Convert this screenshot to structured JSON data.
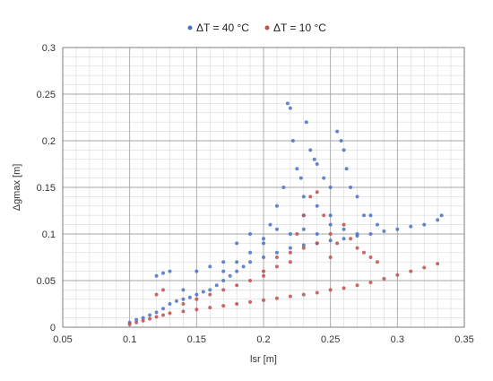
{
  "chart_data": {
    "type": "scatter",
    "xlabel": "lsr [m]",
    "ylabel": "Δgmax [m]",
    "xlim": [
      0.05,
      0.35
    ],
    "ylim": [
      0,
      0.3
    ],
    "x_ticks": [
      "0.05",
      "0.1",
      "0.15",
      "0.2",
      "0.25",
      "0.3",
      "0.35"
    ],
    "y_ticks": [
      "0",
      "0.05",
      "0.1",
      "0.15",
      "0.2",
      "0.25",
      "0.3"
    ],
    "grid": true,
    "minor_grid": true,
    "legend_position": "top",
    "series": [
      {
        "name": "ΔT = 40 °C",
        "color": "#4a72c4",
        "points": [
          [
            0.1,
            0.005
          ],
          [
            0.105,
            0.008
          ],
          [
            0.11,
            0.01
          ],
          [
            0.115,
            0.013
          ],
          [
            0.12,
            0.016
          ],
          [
            0.125,
            0.02
          ],
          [
            0.13,
            0.025
          ],
          [
            0.135,
            0.028
          ],
          [
            0.14,
            0.03
          ],
          [
            0.145,
            0.032
          ],
          [
            0.15,
            0.035
          ],
          [
            0.155,
            0.038
          ],
          [
            0.16,
            0.04
          ],
          [
            0.165,
            0.045
          ],
          [
            0.17,
            0.05
          ],
          [
            0.175,
            0.055
          ],
          [
            0.18,
            0.06
          ],
          [
            0.185,
            0.065
          ],
          [
            0.19,
            0.07
          ],
          [
            0.2,
            0.075
          ],
          [
            0.21,
            0.08
          ],
          [
            0.22,
            0.085
          ],
          [
            0.23,
            0.088
          ],
          [
            0.24,
            0.09
          ],
          [
            0.25,
            0.093
          ],
          [
            0.26,
            0.095
          ],
          [
            0.27,
            0.098
          ],
          [
            0.28,
            0.1
          ],
          [
            0.29,
            0.103
          ],
          [
            0.3,
            0.105
          ],
          [
            0.31,
            0.108
          ],
          [
            0.32,
            0.11
          ],
          [
            0.33,
            0.115
          ],
          [
            0.333,
            0.12
          ],
          [
            0.12,
            0.055
          ],
          [
            0.125,
            0.058
          ],
          [
            0.13,
            0.06
          ],
          [
            0.14,
            0.04
          ],
          [
            0.15,
            0.06
          ],
          [
            0.16,
            0.065
          ],
          [
            0.17,
            0.07
          ],
          [
            0.18,
            0.09
          ],
          [
            0.19,
            0.1
          ],
          [
            0.2,
            0.095
          ],
          [
            0.205,
            0.11
          ],
          [
            0.21,
            0.13
          ],
          [
            0.215,
            0.15
          ],
          [
            0.218,
            0.24
          ],
          [
            0.22,
            0.235
          ],
          [
            0.222,
            0.2
          ],
          [
            0.225,
            0.17
          ],
          [
            0.228,
            0.16
          ],
          [
            0.23,
            0.14
          ],
          [
            0.232,
            0.22
          ],
          [
            0.235,
            0.19
          ],
          [
            0.238,
            0.18
          ],
          [
            0.24,
            0.175
          ],
          [
            0.245,
            0.16
          ],
          [
            0.25,
            0.15
          ],
          [
            0.255,
            0.21
          ],
          [
            0.258,
            0.2
          ],
          [
            0.26,
            0.19
          ],
          [
            0.262,
            0.17
          ],
          [
            0.265,
            0.15
          ],
          [
            0.27,
            0.14
          ],
          [
            0.275,
            0.12
          ],
          [
            0.28,
            0.12
          ],
          [
            0.285,
            0.11
          ],
          [
            0.24,
            0.1
          ],
          [
            0.25,
            0.12
          ],
          [
            0.22,
            0.1
          ],
          [
            0.21,
            0.105
          ],
          [
            0.2,
            0.09
          ],
          [
            0.19,
            0.08
          ],
          [
            0.18,
            0.07
          ],
          [
            0.17,
            0.06
          ],
          [
            0.23,
            0.12
          ],
          [
            0.24,
            0.13
          ],
          [
            0.25,
            0.11
          ],
          [
            0.26,
            0.105
          ],
          [
            0.27,
            0.1
          ],
          [
            0.23,
            0.105
          ]
        ]
      },
      {
        "name": "ΔT = 10 °C",
        "color": "#c0504d",
        "points": [
          [
            0.1,
            0.003
          ],
          [
            0.105,
            0.005
          ],
          [
            0.11,
            0.007
          ],
          [
            0.115,
            0.009
          ],
          [
            0.12,
            0.011
          ],
          [
            0.125,
            0.013
          ],
          [
            0.13,
            0.015
          ],
          [
            0.14,
            0.017
          ],
          [
            0.15,
            0.019
          ],
          [
            0.16,
            0.021
          ],
          [
            0.17,
            0.023
          ],
          [
            0.18,
            0.025
          ],
          [
            0.19,
            0.027
          ],
          [
            0.2,
            0.029
          ],
          [
            0.21,
            0.031
          ],
          [
            0.22,
            0.033
          ],
          [
            0.23,
            0.035
          ],
          [
            0.24,
            0.037
          ],
          [
            0.25,
            0.04
          ],
          [
            0.26,
            0.042
          ],
          [
            0.27,
            0.045
          ],
          [
            0.28,
            0.048
          ],
          [
            0.29,
            0.052
          ],
          [
            0.3,
            0.056
          ],
          [
            0.31,
            0.06
          ],
          [
            0.32,
            0.064
          ],
          [
            0.33,
            0.068
          ],
          [
            0.12,
            0.035
          ],
          [
            0.125,
            0.04
          ],
          [
            0.14,
            0.025
          ],
          [
            0.15,
            0.03
          ],
          [
            0.16,
            0.035
          ],
          [
            0.17,
            0.04
          ],
          [
            0.18,
            0.045
          ],
          [
            0.19,
            0.05
          ],
          [
            0.2,
            0.055
          ],
          [
            0.21,
            0.065
          ],
          [
            0.22,
            0.07
          ],
          [
            0.225,
            0.1
          ],
          [
            0.23,
            0.12
          ],
          [
            0.235,
            0.14
          ],
          [
            0.24,
            0.145
          ],
          [
            0.245,
            0.12
          ],
          [
            0.25,
            0.1
          ],
          [
            0.255,
            0.09
          ],
          [
            0.26,
            0.11
          ],
          [
            0.265,
            0.095
          ],
          [
            0.27,
            0.085
          ],
          [
            0.275,
            0.08
          ],
          [
            0.28,
            0.075
          ],
          [
            0.285,
            0.07
          ],
          [
            0.22,
            0.08
          ],
          [
            0.21,
            0.075
          ],
          [
            0.2,
            0.06
          ],
          [
            0.23,
            0.085
          ],
          [
            0.24,
            0.09
          ],
          [
            0.25,
            0.075
          ]
        ]
      }
    ]
  }
}
